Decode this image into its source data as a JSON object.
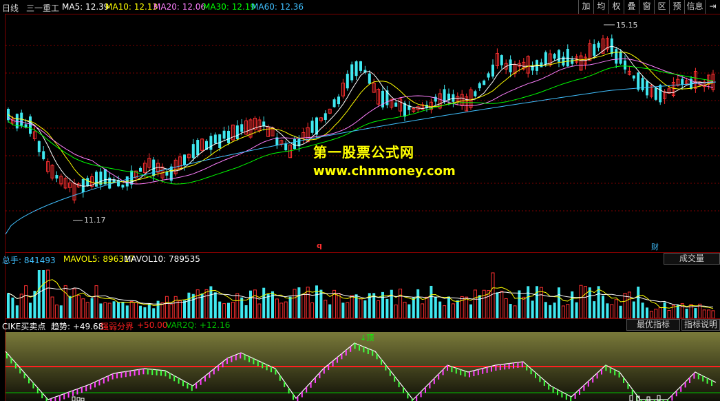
{
  "header": {
    "period": "日线",
    "stock_name": "三一重工",
    "ma_labels": [
      {
        "text": "MA5: 12.39",
        "color": "#ffffff"
      },
      {
        "text": "MA10: 12.13",
        "color": "#ffff00"
      },
      {
        "text": "MA20: 12.06",
        "color": "#ff80ff"
      },
      {
        "text": "MA30: 12.19",
        "color": "#00ff00"
      },
      {
        "text": "MA60: 12.36",
        "color": "#40c0ff"
      }
    ],
    "toolbar": [
      "加",
      "均",
      "权",
      "叠",
      "窗",
      "区",
      "预",
      "信息",
      "⇥"
    ]
  },
  "price_panel": {
    "high_label": "15.15",
    "low_label": "11.17",
    "marker_q": "q",
    "marker_cai": "财",
    "watermark_title": "第一股票公式网",
    "watermark_url": "www.chnmoney.com"
  },
  "volume_panel": {
    "legend": [
      {
        "text": "总手: 841493",
        "color": "#40c0ff"
      },
      {
        "text": "MAVOL5: 896317",
        "color": "#ffff00"
      },
      {
        "text": "MAVOL10: 789535",
        "color": "#ffffff"
      }
    ],
    "button": "成交量"
  },
  "indicator_panel": {
    "legend": [
      {
        "text": "CIKE买卖点",
        "color": "#ffffff"
      },
      {
        "text": "趋势: +49.68",
        "color": "#ffffff"
      },
      {
        "text": "强弱分界",
        "color": "#ff2020"
      },
      {
        "text": "+50.00",
        "color": "#ff2020"
      },
      {
        "text": "VAR2Q: +12.16",
        "color": "#00c000"
      }
    ],
    "top_marker": "顶",
    "buttons": [
      "最优指标",
      "指标说明"
    ]
  },
  "colors": {
    "up": "#ff3030",
    "down": "#40e8f0",
    "grid": "#800000",
    "ma5": "#ffffff",
    "ma10": "#ffff00",
    "ma20": "#ff80ff",
    "ma30": "#00ff00",
    "ma60": "#40c0ff"
  }
}
